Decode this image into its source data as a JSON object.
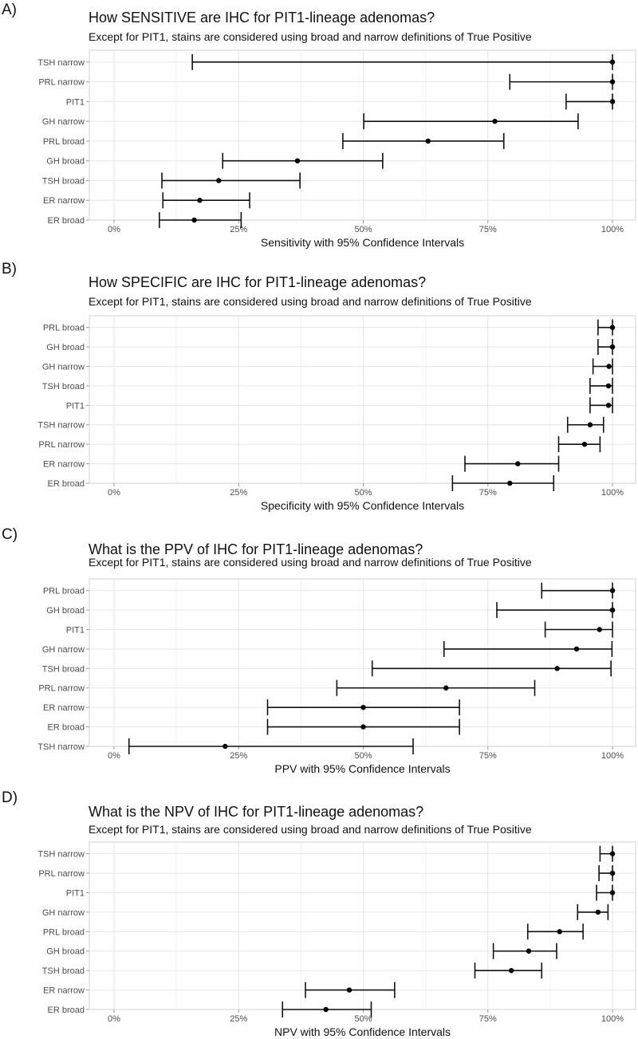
{
  "panels": [
    {
      "tag": "A)",
      "title": "How SENSITIVE are IHC for PIT1-lineage adenomas?",
      "subtitle": "Except for PIT1, stains are considered using broad and narrow definitions of True Positive"
    },
    {
      "tag": "B)",
      "title": "How SPECIFIC are IHC for PIT1-lineage adenomas?",
      "subtitle": "Except for PIT1, stains are considered using broad and narrow definitions of True Positive"
    },
    {
      "tag": "C)",
      "title": "What is the PPV of IHC for PIT1-lineage adenomas?",
      "subtitle": "Except for PIT1, stains are considered using broad and narrow definitions of True Positive"
    },
    {
      "tag": "D)",
      "title": "What is the NPV of IHC for PIT1-lineage adenomas?",
      "subtitle": "Except for PIT1, stains are considered using broad and narrow definitions of True Positive"
    }
  ],
  "chart_data": [
    {
      "type": "scatter",
      "title": "How SENSITIVE are IHC for PIT1-lineage adenomas?",
      "xlabel": "Sensitivity with 95% Confidence Intervals",
      "ylabel": "",
      "xlim": [
        0,
        100
      ],
      "xticks": [
        "0%",
        "25%",
        "50%",
        "75%",
        "100%"
      ],
      "grid": true,
      "categories": [
        "TSH narrow",
        "PRL narrow",
        "PIT1",
        "GH narrow",
        "PRL broad",
        "GH broad",
        "TSH broad",
        "ER narrow",
        "ER broad"
      ],
      "estimate": [
        100,
        100,
        100,
        76.4,
        63.0,
        36.8,
        21.0,
        17.2,
        16.1
      ],
      "lower": [
        15.7,
        79.4,
        90.7,
        50.1,
        45.9,
        21.8,
        9.6,
        9.8,
        9.1
      ],
      "upper": [
        100,
        100,
        100,
        93.1,
        78.2,
        53.9,
        37.3,
        27.2,
        25.5
      ]
    },
    {
      "type": "scatter",
      "title": "How SPECIFIC are IHC for PIT1-lineage adenomas?",
      "xlabel": "Specificity with 95% Confidence Intervals",
      "ylabel": "",
      "xlim": [
        0,
        100
      ],
      "xticks": [
        "0%",
        "25%",
        "50%",
        "75%",
        "100%"
      ],
      "grid": true,
      "categories": [
        "PRL broad",
        "GH broad",
        "GH narrow",
        "TSH broad",
        "PIT1",
        "TSH narrow",
        "PRL narrow",
        "ER narrow",
        "ER broad"
      ],
      "estimate": [
        100,
        100,
        99.3,
        99.2,
        99.2,
        95.5,
        94.4,
        81.0,
        79.4
      ],
      "lower": [
        97.1,
        97.1,
        96.1,
        95.5,
        95.5,
        91.0,
        89.2,
        70.4,
        67.9
      ],
      "upper": [
        100,
        100,
        100,
        100,
        100,
        98.2,
        97.5,
        89.2,
        88.2
      ]
    },
    {
      "type": "scatter",
      "title": "What is the PPV of IHC for PIT1-lineage adenomas?",
      "xlabel": "PPV with 95% Confidence Intervals",
      "ylabel": "",
      "xlim": [
        0,
        100
      ],
      "xticks": [
        "0%",
        "25%",
        "50%",
        "75%",
        "100%"
      ],
      "grid": true,
      "categories": [
        "PRL broad",
        "GH broad",
        "PIT1",
        "GH narrow",
        "TSH broad",
        "PRL narrow",
        "ER narrow",
        "ER broad",
        "TSH narrow"
      ],
      "estimate": [
        100,
        100,
        97.4,
        92.8,
        88.9,
        66.6,
        50.0,
        50.0,
        22.3
      ],
      "lower": [
        85.8,
        76.8,
        86.5,
        66.2,
        51.8,
        44.7,
        30.8,
        30.8,
        3.0
      ],
      "upper": [
        100,
        100,
        100,
        99.9,
        99.7,
        84.4,
        69.3,
        69.3,
        60.0
      ]
    },
    {
      "type": "scatter",
      "title": "What is the NPV of IHC for PIT1-lineage adenomas?",
      "xlabel": "NPV with 95% Confidence Intervals",
      "ylabel": "",
      "xlim": [
        0,
        100
      ],
      "xticks": [
        "0%",
        "25%",
        "50%",
        "75%",
        "100%"
      ],
      "grid": true,
      "categories": [
        "TSH narrow",
        "PRL narrow",
        "PIT1",
        "GH narrow",
        "PRL broad",
        "GH broad",
        "TSH broad",
        "ER narrow",
        "ER broad"
      ],
      "estimate": [
        100,
        100,
        100,
        97.1,
        89.4,
        83.2,
        79.7,
        47.2,
        42.5
      ],
      "lower": [
        97.5,
        97.3,
        96.8,
        93.0,
        83.0,
        76.1,
        72.4,
        38.4,
        33.8
      ],
      "upper": [
        100,
        100,
        100,
        99.1,
        94.1,
        88.8,
        85.8,
        56.3,
        51.6
      ]
    }
  ]
}
